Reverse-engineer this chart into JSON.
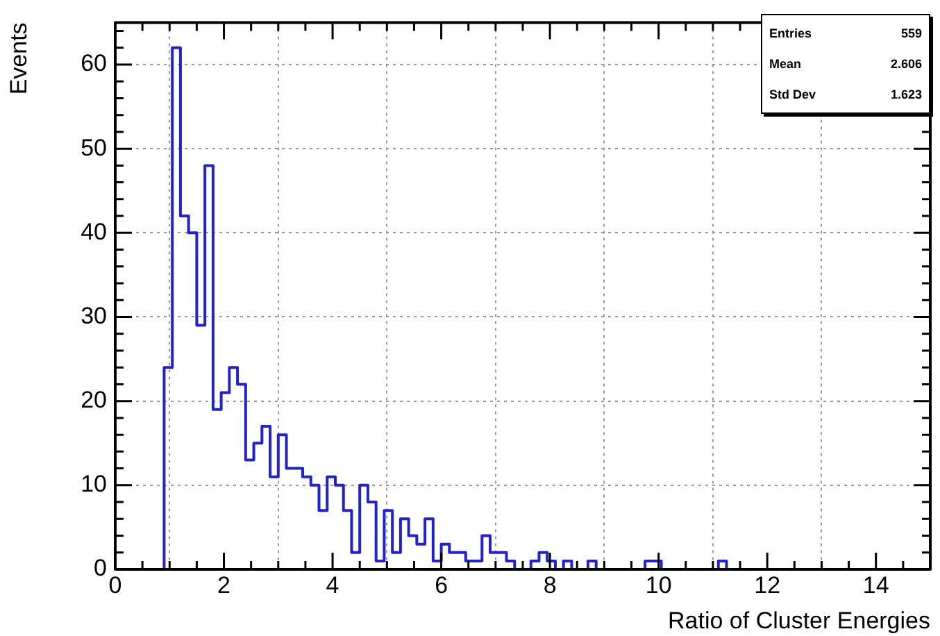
{
  "chart_data": {
    "type": "histogram",
    "xlabel": "Ratio of Cluster Energies",
    "ylabel": "Events",
    "bins": [
      0,
      0.15,
      0.3,
      0.45,
      0.6,
      0.75,
      0.9,
      1.05,
      1.2,
      1.35,
      1.5,
      1.65,
      1.8,
      1.95,
      2.1,
      2.25,
      2.4,
      2.55,
      2.7,
      2.85,
      3,
      3.15,
      3.3,
      3.45,
      3.6,
      3.75,
      3.9,
      4.05,
      4.2,
      4.35,
      4.5,
      4.65,
      4.8,
      4.95,
      5.1,
      5.25,
      5.4,
      5.55,
      5.7,
      5.85,
      6,
      6.15,
      6.3,
      6.45,
      6.6,
      6.75,
      6.9,
      7.05,
      7.2,
      7.35,
      7.5,
      7.65,
      7.8,
      7.95,
      8.1,
      8.25,
      8.4,
      8.55,
      8.7,
      8.85,
      9,
      9.15,
      9.3,
      9.45,
      9.6,
      9.75,
      9.9,
      10.05,
      10.2,
      10.35,
      10.5,
      10.65,
      10.8,
      10.95,
      11.1,
      11.25,
      11.4,
      11.55,
      11.7,
      11.85,
      12,
      12.15,
      12.3,
      12.45,
      12.6,
      12.75,
      12.9,
      13.05,
      13.2,
      13.35,
      13.5,
      13.65,
      13.8,
      13.95,
      14.1,
      14.25,
      14.4,
      14.55,
      14.7,
      14.85,
      15
    ],
    "values": [
      0,
      0,
      0,
      0,
      0,
      0,
      24,
      62,
      42,
      40,
      29,
      48,
      19,
      21,
      24,
      22,
      13,
      15,
      17,
      11,
      16,
      12,
      12,
      11,
      10,
      7,
      11,
      10,
      7,
      2,
      10,
      8,
      1,
      7,
      2,
      6,
      4,
      3,
      6,
      1,
      3,
      2,
      2,
      1,
      1,
      4,
      2,
      2,
      1,
      0,
      0,
      1,
      2,
      1,
      0,
      1,
      0,
      0,
      1,
      0,
      0,
      0,
      0,
      0,
      0,
      1,
      1,
      0,
      0,
      0,
      0,
      0,
      0,
      0,
      1,
      0,
      0,
      0,
      0,
      0,
      0,
      0,
      0,
      0,
      0,
      0,
      0,
      0,
      0,
      0,
      0,
      0,
      0,
      0,
      0,
      0,
      0,
      0,
      0,
      0
    ],
    "color": "#2222cc",
    "xlim": [
      0,
      15
    ],
    "xticks": [
      0,
      2,
      4,
      6,
      8,
      10,
      12,
      14
    ],
    "ylim": [
      0,
      65
    ],
    "yticks": [
      0,
      10,
      20,
      30,
      40,
      50,
      60
    ],
    "grid": true,
    "legend": false,
    "annotations": [
      "Entries 559",
      "Mean 2.606",
      "Std Dev 1.623"
    ]
  }
}
